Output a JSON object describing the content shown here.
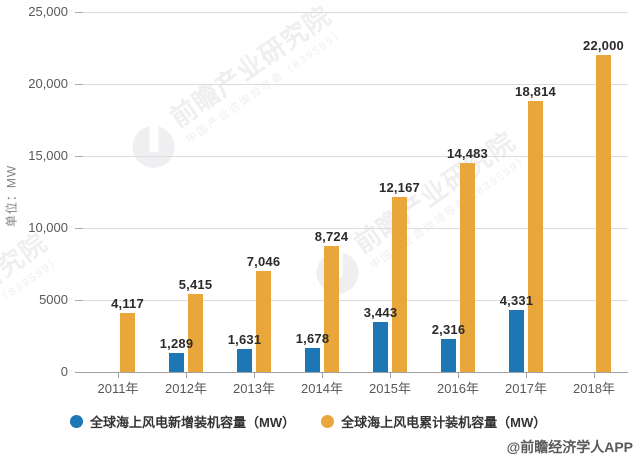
{
  "chart_data": {
    "type": "bar",
    "categories": [
      "2011年",
      "2012年",
      "2013年",
      "2014年",
      "2015年",
      "2016年",
      "2017年",
      "2018年"
    ],
    "series": [
      {
        "name": "全球海上风电新增装机容量（MW）",
        "color": "#1c77b4",
        "values": [
          null,
          1289,
          1631,
          1678,
          3443,
          2316,
          4331,
          null
        ],
        "labels": [
          "",
          "1,289",
          "1,631",
          "1,678",
          "3,443",
          "2,316",
          "4,331",
          ""
        ]
      },
      {
        "name": "全球海上风电累计装机容量（MW）",
        "color": "#e9a63b",
        "values": [
          4117,
          5415,
          7046,
          8724,
          12167,
          14483,
          18814,
          22000
        ],
        "labels": [
          "4,117",
          "5,415",
          "7,046",
          "8,724",
          "12,167",
          "14,483",
          "18,814",
          "22,000"
        ]
      }
    ],
    "xlabel": "",
    "ylabel": "单位：MW",
    "ylim": [
      0,
      25000
    ],
    "yticks": [
      {
        "value": 0,
        "label": "0"
      },
      {
        "value": 5000,
        "label": "5000"
      },
      {
        "value": 10000,
        "label": "10,000"
      },
      {
        "value": 15000,
        "label": "15,000"
      },
      {
        "value": 20000,
        "label": "20,000"
      },
      {
        "value": 25000,
        "label": "25,000"
      }
    ],
    "grid": true,
    "legend_position": "bottom"
  },
  "watermark": {
    "logo_text": "前瞻产业研究院",
    "sub_text": "中国产业咨询领导者（839599）"
  },
  "footer": {
    "attribution": "@前瞻经济学人APP"
  },
  "colors": {
    "new_capacity_series": "#1c77b4",
    "cumulative_capacity_series": "#e9a63b",
    "gridline": "#dcdcdc",
    "axis_line": "#a0a0a0",
    "tick_label": "#595959",
    "data_label": "#2b2b2b",
    "watermark": "#e2e2e8"
  }
}
